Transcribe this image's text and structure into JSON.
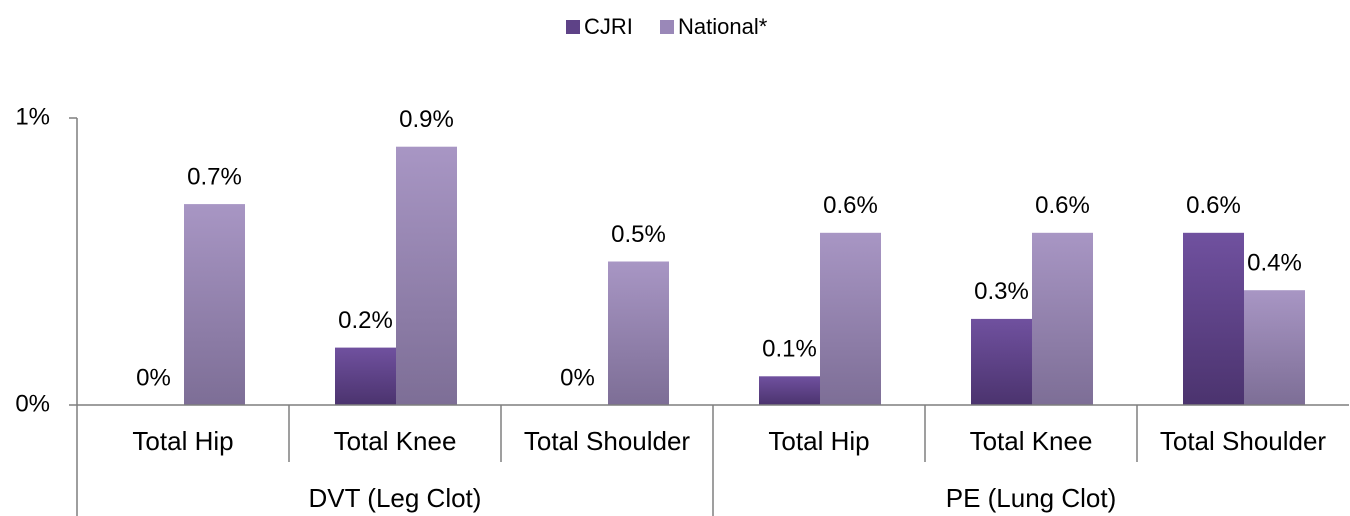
{
  "chart_data": {
    "type": "bar",
    "categories": [
      "Total Hip",
      "Total Knee",
      "Total Shoulder",
      "Total Hip",
      "Total Knee",
      "Total Shoulder"
    ],
    "groups": [
      "DVT (Leg Clot)",
      "PE (Lung Clot)"
    ],
    "series": [
      {
        "name": "CJRI",
        "color": "#5e4287",
        "values": [
          0,
          0.2,
          0,
          0.1,
          0.3,
          0.6
        ],
        "value_labels": [
          "0%",
          "0.2%",
          "0%",
          "0.1%",
          "0.3%",
          "0.6%"
        ]
      },
      {
        "name": "National*",
        "color": "#9a88b8",
        "values": [
          0.7,
          0.9,
          0.5,
          0.6,
          0.6,
          0.4
        ],
        "value_labels": [
          "0.7%",
          "0.9%",
          "0.5%",
          "0.6%",
          "0.6%",
          "0.4%"
        ]
      }
    ],
    "ylim": [
      0,
      1
    ],
    "yticks": [
      {
        "value": 0,
        "label": "0%"
      },
      {
        "value": 1,
        "label": "1%"
      }
    ],
    "legend": "top"
  }
}
